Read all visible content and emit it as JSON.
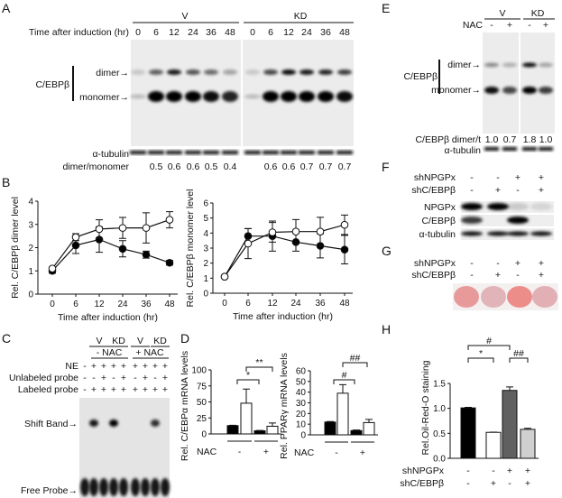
{
  "panel_labels": [
    "A",
    "B",
    "C",
    "D",
    "E",
    "F",
    "G",
    "H"
  ],
  "A": {
    "groups": [
      "V",
      "KD"
    ],
    "time_label": "Time after induction (hr)",
    "times": [
      "0",
      "6",
      "12",
      "24",
      "36",
      "48"
    ],
    "protein": "C/EBPβ",
    "dimer": "dimer→",
    "monomer": "monomer→",
    "tubulin": "α-tubulin",
    "ratio_label": "dimer/monomer",
    "ratios_v": [
      "",
      "0.5",
      "0.6",
      "0.6",
      "0.5",
      "0.4"
    ],
    "ratios_kd": [
      "",
      "0.6",
      "0.6",
      "0.7",
      "0.7",
      "0.7"
    ]
  },
  "chart_data": [
    {
      "type": "line",
      "ylabel": "Rel. C/EBPβ dimer level",
      "xlabel": "Time after induction (hr)",
      "x": [
        0,
        6,
        12,
        24,
        36,
        48
      ],
      "xticks": [
        "0",
        "6",
        "12",
        "24",
        "36",
        "48"
      ],
      "ylim": [
        0,
        4
      ],
      "yticks": [
        "0",
        "1",
        "2",
        "3",
        "4"
      ],
      "series": [
        {
          "name": "filled",
          "values": [
            1.0,
            2.1,
            2.35,
            1.95,
            1.7,
            1.35
          ],
          "err": [
            0.1,
            0.35,
            0.55,
            0.35,
            0.15,
            0.1
          ]
        },
        {
          "name": "open",
          "values": [
            1.1,
            2.45,
            2.8,
            2.85,
            2.85,
            3.2
          ],
          "err": [
            0.05,
            0.15,
            0.4,
            0.45,
            0.65,
            0.35
          ]
        }
      ]
    },
    {
      "type": "line",
      "ylabel": "Rel. C/EBPβ monomer level",
      "xlabel": "Time after induction (hr)",
      "x": [
        0,
        6,
        12,
        24,
        36,
        48
      ],
      "xticks": [
        "0",
        "6",
        "12",
        "24",
        "36",
        "48"
      ],
      "ylim": [
        0,
        6
      ],
      "yticks": [
        "0",
        "1",
        "2",
        "3",
        "4",
        "5",
        "6"
      ],
      "series": [
        {
          "name": "filled",
          "values": [
            1.1,
            3.8,
            3.8,
            3.4,
            3.15,
            2.9
          ],
          "err": [
            0.05,
            0.5,
            1.0,
            0.6,
            0.8,
            0.95
          ]
        },
        {
          "name": "open",
          "values": [
            1.1,
            3.3,
            4.05,
            4.1,
            4.1,
            4.55
          ],
          "err": [
            0.05,
            1.0,
            0.65,
            0.8,
            0.95,
            0.65
          ]
        }
      ]
    },
    {
      "type": "bar",
      "ylabel": "Rel. C/EBPα mRNA levels",
      "ylim": [
        0,
        100
      ],
      "yticks": [
        "0",
        "25",
        "50",
        "75",
        "100"
      ],
      "values": [
        13,
        48,
        5,
        12
      ],
      "err": [
        0.5,
        22,
        0.5,
        5
      ],
      "fills": [
        "#000000",
        "#ffffff",
        "#000000",
        "#ffffff"
      ],
      "xrow_label": "NAC",
      "groups": [
        "-",
        "+"
      ],
      "sig": [
        "*",
        "**"
      ]
    },
    {
      "type": "bar",
      "ylabel": "Rel. PPARγ mRNA levels",
      "ylim": [
        0,
        60
      ],
      "yticks": [
        "0",
        "10",
        "20",
        "30",
        "40",
        "50",
        "60"
      ],
      "values": [
        12,
        39,
        4,
        11.5
      ],
      "err": [
        0.5,
        8,
        0.5,
        3
      ],
      "fills": [
        "#000000",
        "#ffffff",
        "#000000",
        "#ffffff"
      ],
      "xrow_label": "NAC",
      "groups": [
        "-",
        "+"
      ],
      "sig": [
        "#",
        "##"
      ]
    },
    {
      "type": "bar",
      "ylabel": "Rel.Oil-Red-O staining",
      "ylim": [
        0,
        1.5
      ],
      "yticks": [
        "0.0",
        "0.5",
        "1.0",
        "1.5"
      ],
      "values": [
        1.01,
        0.52,
        1.36,
        0.58
      ],
      "err": [
        0.01,
        0.005,
        0.07,
        0.02
      ],
      "fills": [
        "#000000",
        "#ffffff",
        "#606060",
        "#d0d0d0"
      ],
      "sig": [
        "*",
        "#",
        "##"
      ],
      "rows": [
        {
          "label": "shNPGPx",
          "values": [
            "-",
            "-",
            "+",
            "+"
          ]
        },
        {
          "label": "shC/EBPβ",
          "values": [
            "-",
            "+",
            "-",
            "+"
          ]
        }
      ]
    }
  ],
  "C": {
    "groups": [
      "V",
      "KD",
      "V",
      "KD"
    ],
    "nac": [
      "- NAC",
      "+ NAC"
    ],
    "rows": [
      {
        "label": "NE",
        "values": [
          "-",
          "+",
          "+",
          "+",
          "+",
          "+",
          "+",
          "+",
          "+"
        ]
      },
      {
        "label": "Unlabeled probe",
        "values": [
          "-",
          "-",
          "+",
          "-",
          "+",
          "-",
          "+",
          "-",
          "+"
        ]
      },
      {
        "label": "Labeled probe",
        "values": [
          "-",
          "+",
          "+",
          "+",
          "+",
          "+",
          "+",
          "+",
          "+"
        ]
      }
    ],
    "shift": "Shift Band→",
    "free": "Free Probe→"
  },
  "E": {
    "groups": [
      "V",
      "KD"
    ],
    "nac_label": "NAC",
    "nac": [
      "-",
      "+",
      "-",
      "+"
    ],
    "protein": "C/EBPβ",
    "dimer": "dimer→",
    "monomer": "monomer→",
    "ratio_label": "C/EBPβ dimer/t",
    "ratios": [
      "1.0",
      "0.7",
      "1.8",
      "1.0"
    ],
    "tubulin": "α-tubulin"
  },
  "F": {
    "rows": [
      {
        "label": "shNPGPx",
        "values": [
          "-",
          "-",
          "+",
          "+"
        ]
      },
      {
        "label": "shC/EBPβ",
        "values": [
          "-",
          "+",
          "-",
          "+"
        ]
      }
    ],
    "bands": [
      "NPGPx",
      "C/EBPβ",
      "α-tubulin"
    ]
  },
  "G": {
    "rows": [
      {
        "label": "shNPGPx",
        "values": [
          "-",
          "-",
          "+",
          "+"
        ]
      },
      {
        "label": "shC/EBPβ",
        "values": [
          "-",
          "+",
          "-",
          "+"
        ]
      }
    ],
    "well_colors": [
      "#e89a9a",
      "#e0b4b8",
      "#ec8d8a",
      "#e2b0b4"
    ]
  }
}
